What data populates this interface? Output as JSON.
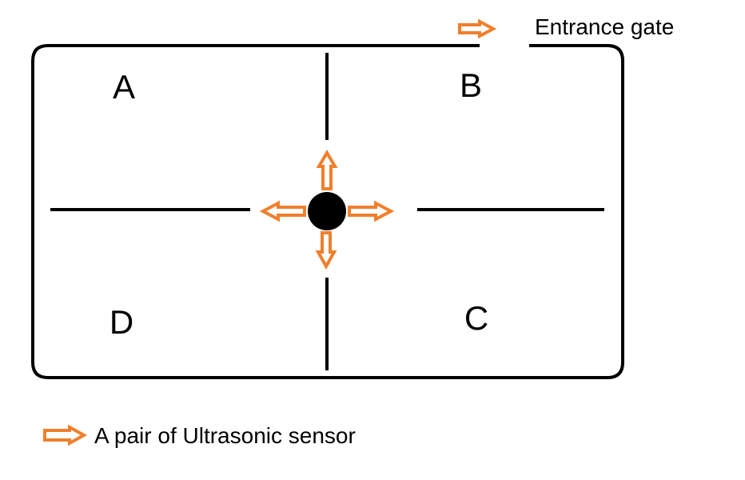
{
  "zones": [
    {
      "id": "A",
      "label": "A"
    },
    {
      "id": "B",
      "label": "B"
    },
    {
      "id": "C",
      "label": "C"
    },
    {
      "id": "D",
      "label": "D"
    }
  ],
  "entrance": {
    "label": "Entrance gate"
  },
  "legend": {
    "label": "A pair of Ultrasonic sensor"
  },
  "sensor": {
    "directions": [
      "up",
      "right",
      "down",
      "left"
    ]
  },
  "colors": {
    "arrow": "#f07f2c",
    "line": "#000000",
    "hub": "#000000",
    "background": "#ffffff"
  }
}
